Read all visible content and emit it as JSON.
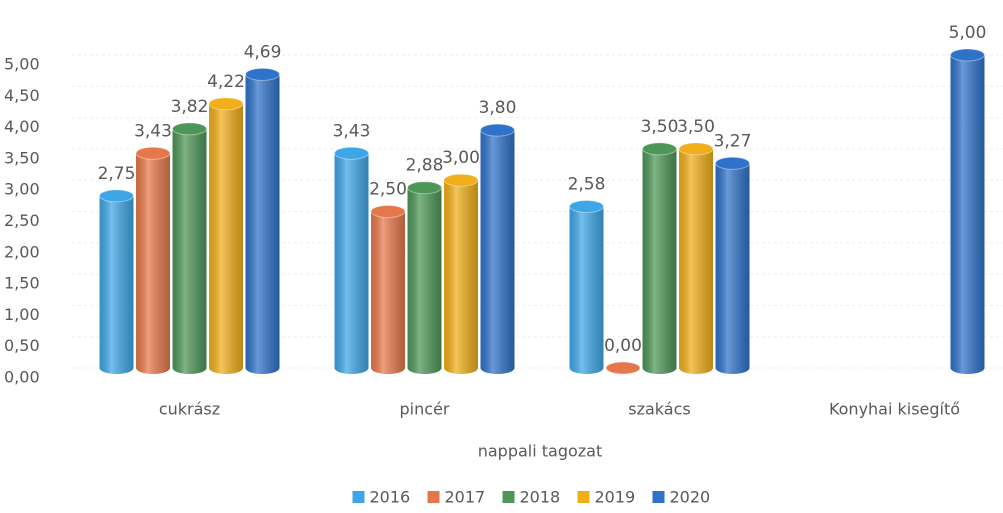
{
  "chart_data": {
    "type": "bar3d",
    "x_label": "nappali tagozat",
    "categories": [
      "cukrász",
      "pincér",
      "szakács",
      "Konyhai kisegítő"
    ],
    "series": [
      {
        "name": "2016",
        "color": "#3ea6e6",
        "values": [
          2.75,
          3.43,
          2.58,
          null
        ],
        "value_labels": [
          "2,75",
          "3,43",
          "2,58",
          null
        ]
      },
      {
        "name": "2017",
        "color": "#e5784b",
        "values": [
          3.43,
          2.5,
          0.0,
          null
        ],
        "value_labels": [
          "3,43",
          "2,50",
          "0,00",
          null
        ]
      },
      {
        "name": "2018",
        "color": "#4e9658",
        "values": [
          3.82,
          2.88,
          3.5,
          null
        ],
        "value_labels": [
          "3,82",
          "2,88",
          "3,50",
          null
        ]
      },
      {
        "name": "2019",
        "color": "#f0ae1a",
        "values": [
          4.22,
          3.0,
          3.5,
          null
        ],
        "value_labels": [
          "4,22",
          "3,00",
          "3,50",
          null
        ]
      },
      {
        "name": "2020",
        "color": "#2f72c9",
        "values": [
          4.69,
          3.8,
          3.27,
          5.0
        ],
        "value_labels": [
          "4,69",
          "3,80",
          "3,27",
          "5,00"
        ]
      }
    ],
    "ylim": [
      0,
      5
    ],
    "yticks": [
      {
        "value": 0,
        "label": "0,00"
      },
      {
        "value": 0.5,
        "label": "0,50"
      },
      {
        "value": 1,
        "label": "1,00"
      },
      {
        "value": 1.5,
        "label": "1,50"
      },
      {
        "value": 2,
        "label": "2,00"
      },
      {
        "value": 2.5,
        "label": "2,50"
      },
      {
        "value": 3,
        "label": "3,00"
      },
      {
        "value": 3.5,
        "label": "3,50"
      },
      {
        "value": 4,
        "label": "4,00"
      },
      {
        "value": 4.5,
        "label": "4,50"
      },
      {
        "value": 5,
        "label": "5,00"
      }
    ],
    "grid": true,
    "legend": "bottom"
  }
}
